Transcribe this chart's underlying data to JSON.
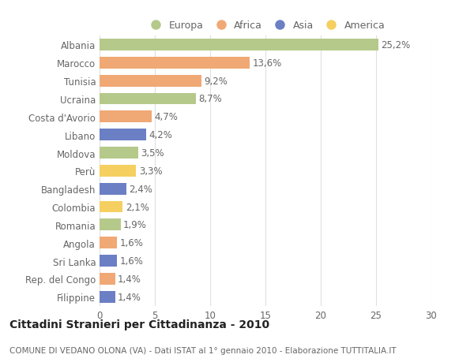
{
  "countries": [
    "Albania",
    "Marocco",
    "Tunisia",
    "Ucraina",
    "Costa d'Avorio",
    "Libano",
    "Moldova",
    "Perù",
    "Bangladesh",
    "Colombia",
    "Romania",
    "Angola",
    "Sri Lanka",
    "Rep. del Congo",
    "Filippine"
  ],
  "values": [
    25.2,
    13.6,
    9.2,
    8.7,
    4.7,
    4.2,
    3.5,
    3.3,
    2.4,
    2.1,
    1.9,
    1.6,
    1.6,
    1.4,
    1.4
  ],
  "labels": [
    "25,2%",
    "13,6%",
    "9,2%",
    "8,7%",
    "4,7%",
    "4,2%",
    "3,5%",
    "3,3%",
    "2,4%",
    "2,1%",
    "1,9%",
    "1,6%",
    "1,6%",
    "1,4%",
    "1,4%"
  ],
  "continents": [
    "Europa",
    "Africa",
    "Africa",
    "Europa",
    "Africa",
    "Asia",
    "Europa",
    "America",
    "Asia",
    "America",
    "Europa",
    "Africa",
    "Asia",
    "Africa",
    "Asia"
  ],
  "colors": {
    "Europa": "#b5c98a",
    "Africa": "#f0a875",
    "Asia": "#6b7fc4",
    "America": "#f5d060"
  },
  "title": "Cittadini Stranieri per Cittadinanza - 2010",
  "subtitle": "COMUNE DI VEDANO OLONA (VA) - Dati ISTAT al 1° gennaio 2010 - Elaborazione TUTTITALIA.IT",
  "xlim": [
    0,
    30
  ],
  "xticks": [
    0,
    5,
    10,
    15,
    20,
    25,
    30
  ],
  "background_color": "#ffffff",
  "grid_color": "#e0e0e0",
  "bar_height": 0.65,
  "title_fontsize": 10,
  "subtitle_fontsize": 7.5,
  "tick_fontsize": 8.5,
  "label_fontsize": 8.5,
  "legend_fontsize": 9,
  "text_color": "#666666"
}
